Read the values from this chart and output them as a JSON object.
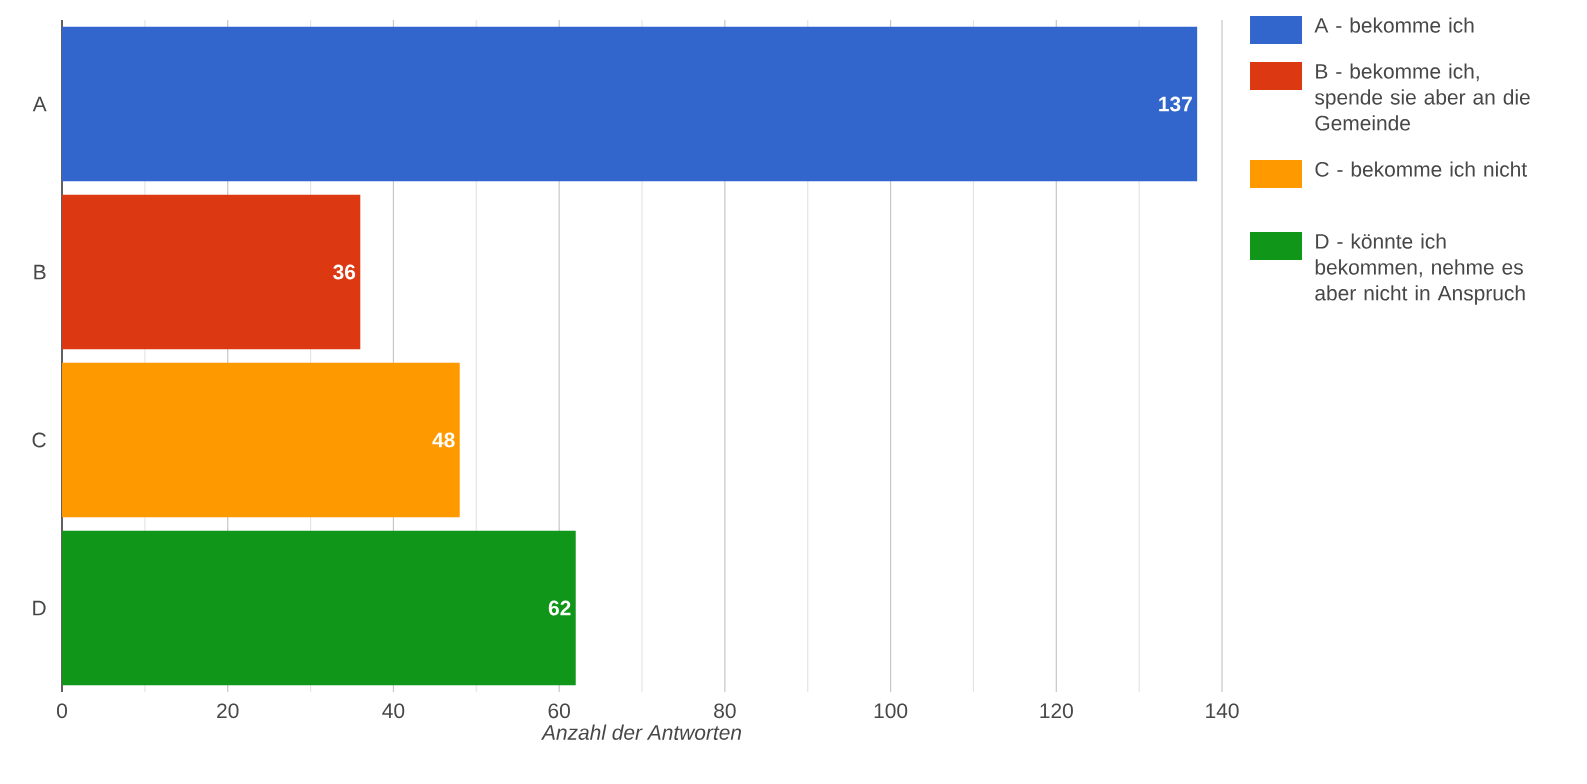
{
  "chart_data": {
    "type": "bar",
    "orientation": "horizontal",
    "xlabel": "Anzahl der Antworten",
    "categories": [
      "A",
      "B",
      "C",
      "D"
    ],
    "series": [
      {
        "name": "A - bekomme ich",
        "color": "#3366cc",
        "values": [
          137,
          null,
          null,
          null
        ]
      },
      {
        "name": "B - bekomme ich, spende sie aber an die Gemeinde",
        "color": "#dc3912",
        "values": [
          null,
          36,
          null,
          null
        ]
      },
      {
        "name": "C - bekomme ich nicht",
        "color": "#ff9900",
        "values": [
          null,
          null,
          48,
          null
        ]
      },
      {
        "name": "D - könnte ich bekommen, nehme es aber nicht in Anspruch",
        "color": "#109618",
        "values": [
          null,
          null,
          null,
          62
        ]
      }
    ],
    "xlim": [
      0,
      140
    ],
    "xticks": [
      0,
      20,
      40,
      60,
      80,
      100,
      120,
      140
    ],
    "grid": "x",
    "legend": "right",
    "data_labels": true
  }
}
